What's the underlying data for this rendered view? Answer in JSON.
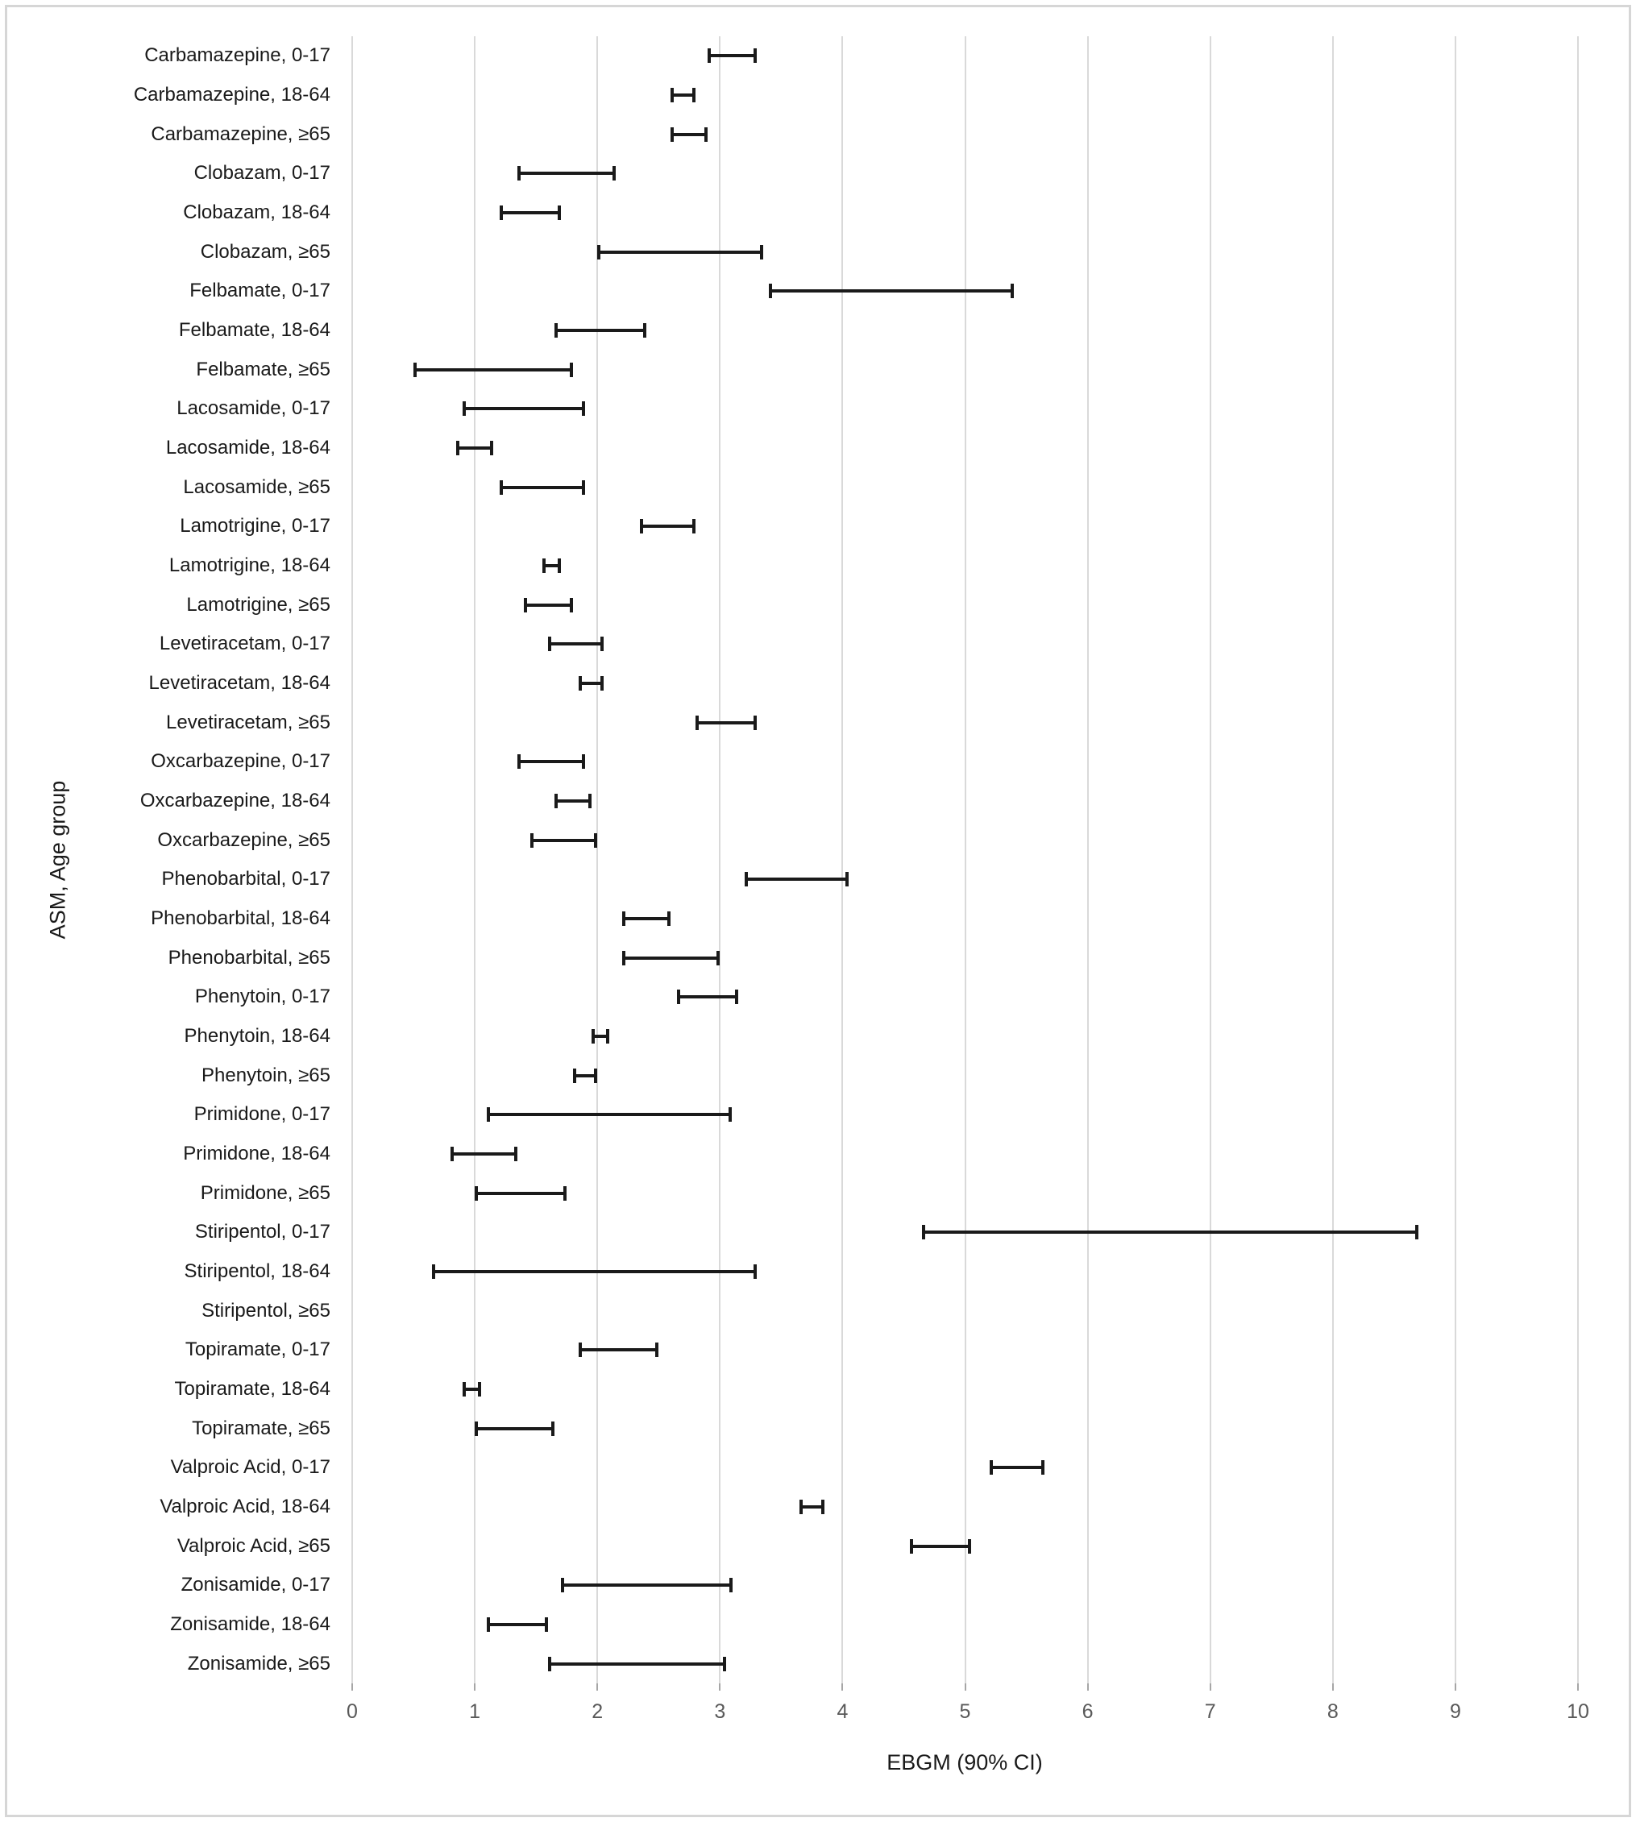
{
  "chart_data": {
    "type": "scatter",
    "subtype": "horizontal-error-bar-forest-plot",
    "title": "",
    "xlabel": "EBGM (90% CI)",
    "ylabel": "ASM, Age group",
    "xlim": [
      0,
      10
    ],
    "x_ticks": [
      "0",
      "1",
      "2",
      "3",
      "4",
      "5",
      "6",
      "7",
      "8",
      "9",
      "10"
    ],
    "grid": "vertical-gridlines-on",
    "legend": "none",
    "markers": "none (interval caps only)",
    "bar_color": "#1a1a1a",
    "gridline_color": "#d9d9d9",
    "tick_label_color": "#595959",
    "rows": [
      {
        "label": "Carbamazepine, 0-17",
        "ci_low": 2.9,
        "ci_high": 3.3
      },
      {
        "label": "Carbamazepine, 18-64",
        "ci_low": 2.6,
        "ci_high": 2.8
      },
      {
        "label": "Carbamazepine, ≥65",
        "ci_low": 2.6,
        "ci_high": 2.9
      },
      {
        "label": "Clobazam, 0-17",
        "ci_low": 1.35,
        "ci_high": 2.15
      },
      {
        "label": "Clobazam, 18-64",
        "ci_low": 1.2,
        "ci_high": 1.7
      },
      {
        "label": "Clobazam, ≥65",
        "ci_low": 2.0,
        "ci_high": 3.35
      },
      {
        "label": "Felbamate, 0-17",
        "ci_low": 3.4,
        "ci_high": 5.4
      },
      {
        "label": "Felbamate, 18-64",
        "ci_low": 1.65,
        "ci_high": 2.4
      },
      {
        "label": "Felbamate, ≥65",
        "ci_low": 0.5,
        "ci_high": 1.8
      },
      {
        "label": "Lacosamide, 0-17",
        "ci_low": 0.9,
        "ci_high": 1.9
      },
      {
        "label": "Lacosamide, 18-64",
        "ci_low": 0.85,
        "ci_high": 1.15
      },
      {
        "label": "Lacosamide, ≥65",
        "ci_low": 1.2,
        "ci_high": 1.9
      },
      {
        "label": "Lamotrigine, 0-17",
        "ci_low": 2.35,
        "ci_high": 2.8
      },
      {
        "label": "Lamotrigine, 18-64",
        "ci_low": 1.55,
        "ci_high": 1.7
      },
      {
        "label": "Lamotrigine, ≥65",
        "ci_low": 1.4,
        "ci_high": 1.8
      },
      {
        "label": "Levetiracetam, 0-17",
        "ci_low": 1.6,
        "ci_high": 2.05
      },
      {
        "label": "Levetiracetam, 18-64",
        "ci_low": 1.85,
        "ci_high": 2.05
      },
      {
        "label": "Levetiracetam, ≥65",
        "ci_low": 2.8,
        "ci_high": 3.3
      },
      {
        "label": "Oxcarbazepine, 0-17",
        "ci_low": 1.35,
        "ci_high": 1.9
      },
      {
        "label": "Oxcarbazepine, 18-64",
        "ci_low": 1.65,
        "ci_high": 1.95
      },
      {
        "label": "Oxcarbazepine, ≥65",
        "ci_low": 1.45,
        "ci_high": 2.0
      },
      {
        "label": "Phenobarbital, 0-17",
        "ci_low": 3.2,
        "ci_high": 4.05
      },
      {
        "label": "Phenobarbital, 18-64",
        "ci_low": 2.2,
        "ci_high": 2.6
      },
      {
        "label": "Phenobarbital, ≥65",
        "ci_low": 2.2,
        "ci_high": 3.0
      },
      {
        "label": "Phenytoin, 0-17",
        "ci_low": 2.65,
        "ci_high": 3.15
      },
      {
        "label": "Phenytoin, 18-64",
        "ci_low": 1.95,
        "ci_high": 2.1
      },
      {
        "label": "Phenytoin, ≥65",
        "ci_low": 1.8,
        "ci_high": 2.0
      },
      {
        "label": "Primidone, 0-17",
        "ci_low": 1.1,
        "ci_high": 3.1
      },
      {
        "label": "Primidone, 18-64",
        "ci_low": 0.8,
        "ci_high": 1.35
      },
      {
        "label": "Primidone, ≥65",
        "ci_low": 1.0,
        "ci_high": 1.75
      },
      {
        "label": "Stiripentol, 0-17",
        "ci_low": 4.65,
        "ci_high": 8.7
      },
      {
        "label": "Stiripentol, 18-64",
        "ci_low": 0.65,
        "ci_high": 3.3
      },
      {
        "label": "Stiripentol, ≥65",
        "ci_low": null,
        "ci_high": null
      },
      {
        "label": "Topiramate, 0-17",
        "ci_low": 1.85,
        "ci_high": 2.5
      },
      {
        "label": "Topiramate, 18-64",
        "ci_low": 0.9,
        "ci_high": 1.05
      },
      {
        "label": "Topiramate, ≥65",
        "ci_low": 1.0,
        "ci_high": 1.65
      },
      {
        "label": "Valproic Acid, 0-17",
        "ci_low": 5.2,
        "ci_high": 5.65
      },
      {
        "label": "Valproic Acid, 18-64",
        "ci_low": 3.65,
        "ci_high": 3.85
      },
      {
        "label": "Valproic Acid, ≥65",
        "ci_low": 4.55,
        "ci_high": 5.05
      },
      {
        "label": "Zonisamide, 0-17",
        "ci_low": 1.7,
        "ci_high": 3.1
      },
      {
        "label": "Zonisamide, 18-64",
        "ci_low": 1.1,
        "ci_high": 1.6
      },
      {
        "label": "Zonisamide, ≥65",
        "ci_low": 1.6,
        "ci_high": 3.05
      }
    ]
  }
}
